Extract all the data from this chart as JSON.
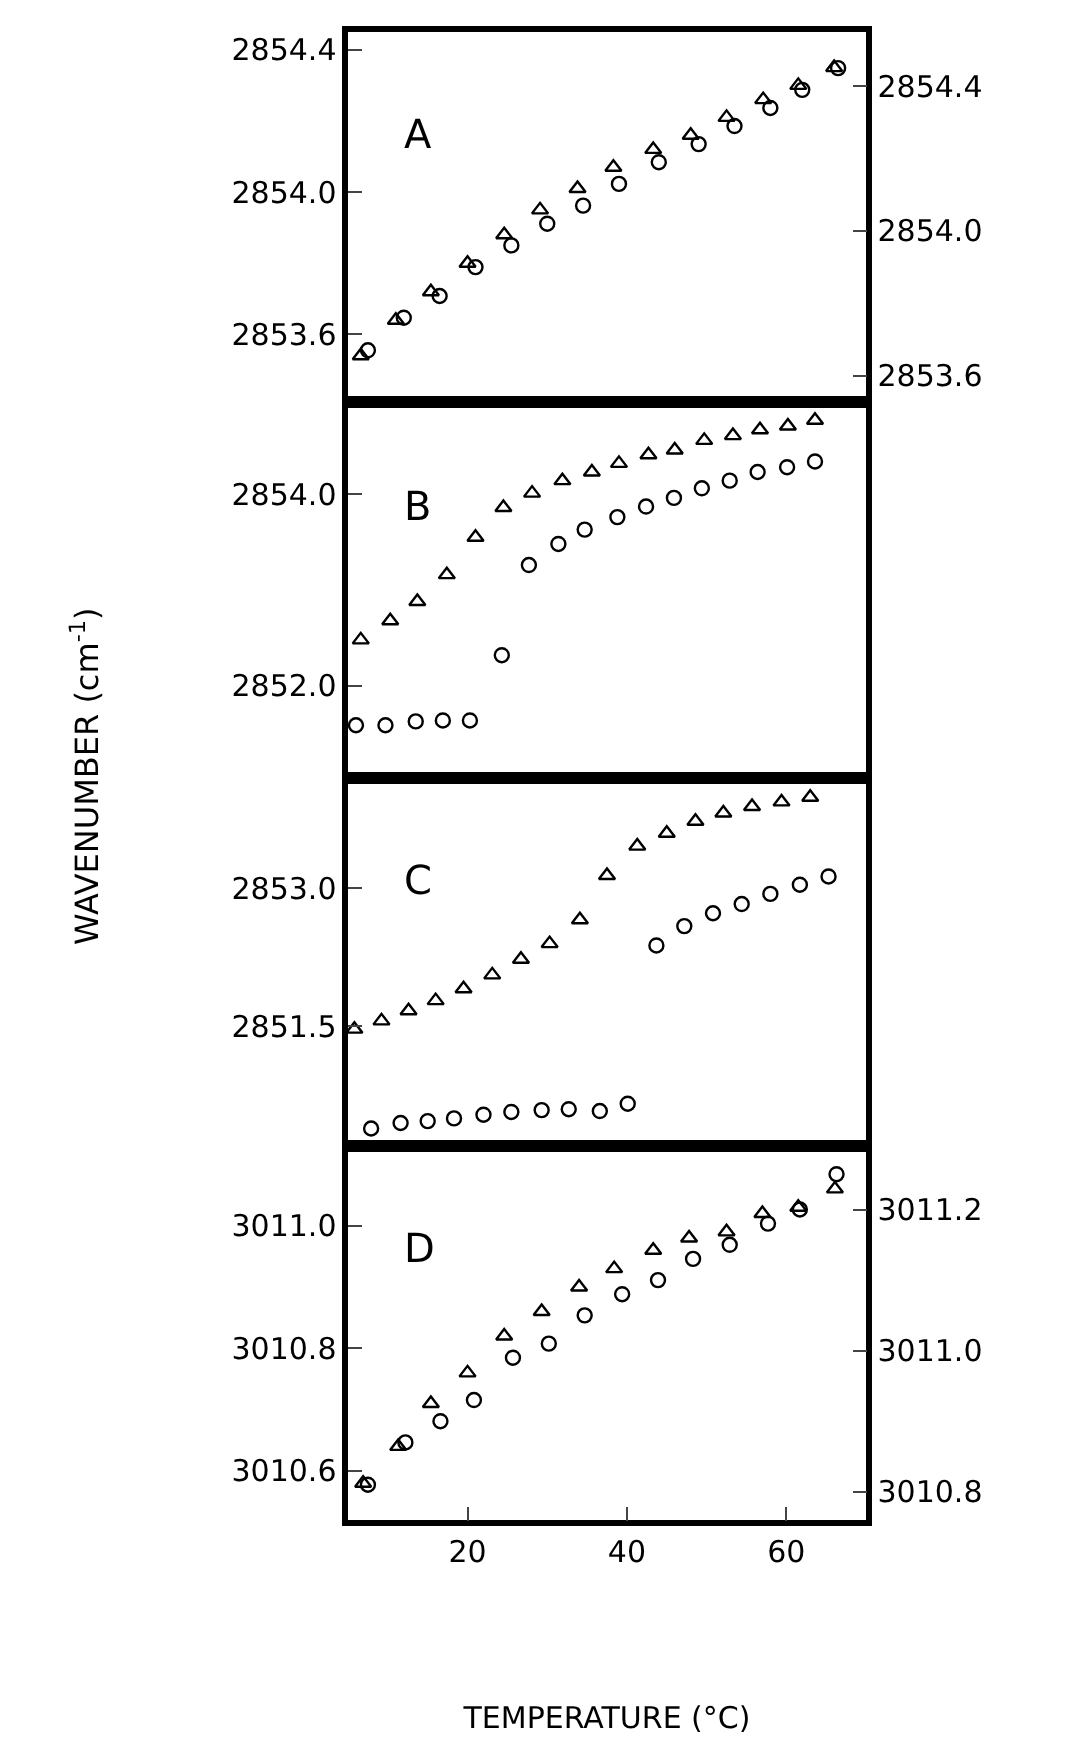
{
  "chart_data": [
    {
      "type": "scatter",
      "annotations": [
        "A"
      ],
      "xlim": [
        5,
        70
      ],
      "tick_labels": "y",
      "ylim": [
        2853.41,
        2854.45
      ],
      "yticks": [
        2853.6,
        {
          "value": 2854.0,
          "label": "2854.0"
        },
        2854.4
      ],
      "y2lim": [
        2853.527,
        2854.55
      ],
      "y2ticks": [
        2853.6,
        {
          "value": 2854.0,
          "label": "2854.0"
        },
        2854.4
      ],
      "series": [
        {
          "color": "#000000",
          "marker": "triangle",
          "x": [
            6.6,
            11.0,
            15.4,
            20.0,
            24.6,
            29.1,
            33.8,
            38.3,
            43.3,
            48.0,
            52.5,
            57.1,
            61.5,
            66.0
          ],
          "values": [
            2853.54,
            2853.64,
            2853.72,
            2853.8,
            2853.88,
            2853.95,
            2854.01,
            2854.07,
            2854.12,
            2854.16,
            2854.21,
            2854.26,
            2854.3,
            2854.35
          ]
        },
        {
          "color": "#000000",
          "marker": "circle",
          "axis": "y2",
          "x": [
            7.5,
            12.0,
            16.5,
            21.0,
            25.5,
            30.0,
            34.5,
            39.0,
            44.0,
            49.0,
            53.5,
            58.0,
            62.0,
            66.5
          ],
          "values": [
            2853.67,
            2853.76,
            2853.82,
            2853.9,
            2853.96,
            2854.02,
            2854.07,
            2854.13,
            2854.19,
            2854.24,
            2854.29,
            2854.34,
            2854.39,
            2854.45
          ]
        }
      ]
    },
    {
      "type": "scatter",
      "annotations": [
        "B"
      ],
      "ylabel": "WAVENUMBER (cm$^{-1}$)",
      "xlim": [
        5,
        70
      ],
      "tick_labels": "y",
      "ylim": [
        2851.04,
        2854.96
      ],
      "yticks": [
        {
          "value": 2852.0,
          "label": "2852.0"
        },
        {
          "value": 2854.0,
          "label": "2854.0"
        }
      ],
      "series": [
        {
          "color": "#000000",
          "marker": "triangle",
          "x": [
            6.6,
            10.3,
            13.7,
            17.4,
            21.0,
            24.5,
            28.1,
            31.9,
            35.6,
            39.0,
            42.7,
            46.0,
            49.7,
            53.3,
            56.7,
            60.2,
            63.6
          ],
          "values": [
            2852.48,
            2852.68,
            2852.88,
            2853.16,
            2853.55,
            2853.86,
            2854.01,
            2854.14,
            2854.23,
            2854.32,
            2854.41,
            2854.46,
            2854.56,
            2854.61,
            2854.67,
            2854.71,
            2854.77
          ]
        },
        {
          "color": "#000000",
          "marker": "circle",
          "x": [
            6.0,
            9.7,
            13.5,
            16.9,
            20.3,
            24.3,
            27.7,
            31.4,
            34.7,
            38.8,
            42.4,
            45.9,
            49.4,
            52.9,
            56.4,
            60.1,
            63.6
          ],
          "values": [
            2851.59,
            2851.59,
            2851.63,
            2851.64,
            2851.64,
            2852.32,
            2853.26,
            2853.48,
            2853.63,
            2853.76,
            2853.87,
            2853.96,
            2854.06,
            2854.14,
            2854.23,
            2854.28,
            2854.34
          ]
        }
      ]
    },
    {
      "type": "scatter",
      "annotations": [
        "C"
      ],
      "xlim": [
        5,
        70
      ],
      "tick_labels": "y",
      "ylim": [
        2850.2,
        2854.2
      ],
      "yticks": [
        2851.5,
        {
          "value": 2853.0,
          "label": "2853.0"
        }
      ],
      "series": [
        {
          "color": "#000000",
          "marker": "triangle",
          "x": [
            5.8,
            9.2,
            12.6,
            16.0,
            19.5,
            23.1,
            26.7,
            30.3,
            34.1,
            37.5,
            41.3,
            45.0,
            48.6,
            52.1,
            55.7,
            59.4,
            63.0
          ],
          "values": [
            2851.47,
            2851.56,
            2851.67,
            2851.78,
            2851.91,
            2852.06,
            2852.23,
            2852.4,
            2852.66,
            2853.14,
            2853.46,
            2853.6,
            2853.73,
            2853.82,
            2853.89,
            2853.94,
            2853.99
          ]
        },
        {
          "color": "#000000",
          "marker": "circle",
          "x": [
            7.9,
            11.6,
            15.0,
            18.3,
            22.0,
            25.5,
            29.3,
            32.7,
            36.6,
            40.1,
            43.7,
            47.2,
            50.8,
            54.4,
            58.0,
            61.7,
            65.3
          ],
          "values": [
            2850.39,
            2850.45,
            2850.47,
            2850.5,
            2850.54,
            2850.57,
            2850.59,
            2850.6,
            2850.58,
            2850.66,
            2852.38,
            2852.59,
            2852.73,
            2852.83,
            2852.94,
            2853.04,
            2853.13
          ]
        }
      ]
    },
    {
      "type": "scatter",
      "annotations": [
        "D"
      ],
      "xlabel": "TEMPERATURE (°C)",
      "xlim": [
        5,
        70
      ],
      "xticks": [
        20,
        40,
        60
      ],
      "ylim": [
        3010.52,
        3011.13
      ],
      "yticks": [
        3010.6,
        3010.8,
        {
          "value": 3011.0,
          "label": "3011.0"
        }
      ],
      "y2lim": [
        3010.76,
        3011.29
      ],
      "y2ticks": [
        3010.8,
        {
          "value": 3011.0,
          "label": "3011.0"
        },
        3011.2
      ],
      "series": [
        {
          "color": "#000000",
          "marker": "triangle",
          "x": [
            6.9,
            11.3,
            15.4,
            20.0,
            24.6,
            29.3,
            34.0,
            38.4,
            43.3,
            47.8,
            52.5,
            57.0,
            61.5,
            66.1
          ],
          "values": [
            3010.58,
            3010.64,
            3010.71,
            3010.76,
            3010.82,
            3010.86,
            3010.9,
            3010.93,
            3010.96,
            3010.98,
            3010.99,
            3011.02,
            3011.03,
            3011.06
          ]
        },
        {
          "color": "#000000",
          "marker": "circle",
          "axis": "y2",
          "x": [
            7.5,
            12.2,
            16.6,
            20.8,
            25.7,
            30.2,
            34.7,
            39.4,
            43.9,
            48.3,
            52.9,
            57.7,
            61.7,
            66.3
          ],
          "values": [
            3010.81,
            3010.87,
            3010.9,
            3010.93,
            3010.99,
            3011.01,
            3011.05,
            3011.08,
            3011.1,
            3011.13,
            3011.15,
            3011.18,
            3011.2,
            3011.25
          ]
        }
      ]
    }
  ]
}
